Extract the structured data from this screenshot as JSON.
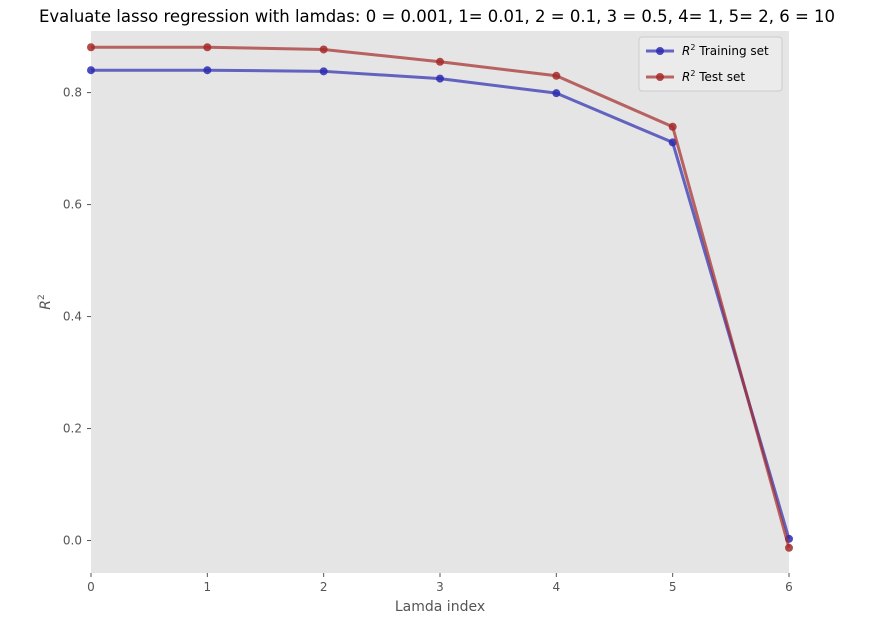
{
  "chart_data": {
    "type": "line",
    "title": "Evaluate lasso regression with lamdas: 0 = 0.001, 1= 0.01, 2 = 0.1, 3 = 0.5, 4= 1, 5= 2, 6 = 10",
    "xlabel": "Lamda index",
    "ylabel": "R",
    "ylabel_superscript": "2",
    "x": [
      0,
      1,
      2,
      3,
      4,
      5,
      6
    ],
    "xlim": [
      0,
      6
    ],
    "ylim": [
      -0.058,
      0.91
    ],
    "xticks": [
      0,
      1,
      2,
      3,
      4,
      5,
      6
    ],
    "yticks": [
      0.0,
      0.2,
      0.4,
      0.6,
      0.8
    ],
    "ytick_labels": [
      "0.0",
      "0.2",
      "0.4",
      "0.6",
      "0.8"
    ],
    "grid": false,
    "legend_position": "top-right",
    "series": [
      {
        "name": "Training set",
        "name_prefix": "R",
        "name_superscript": "2",
        "color": "#2b2bb0",
        "values": [
          0.84,
          0.84,
          0.838,
          0.825,
          0.799,
          0.711,
          0.003
        ]
      },
      {
        "name": "Test set",
        "name_prefix": "R",
        "name_superscript": "2",
        "color": "#a52a2a",
        "values": [
          0.881,
          0.881,
          0.877,
          0.855,
          0.83,
          0.739,
          -0.013
        ]
      }
    ]
  }
}
